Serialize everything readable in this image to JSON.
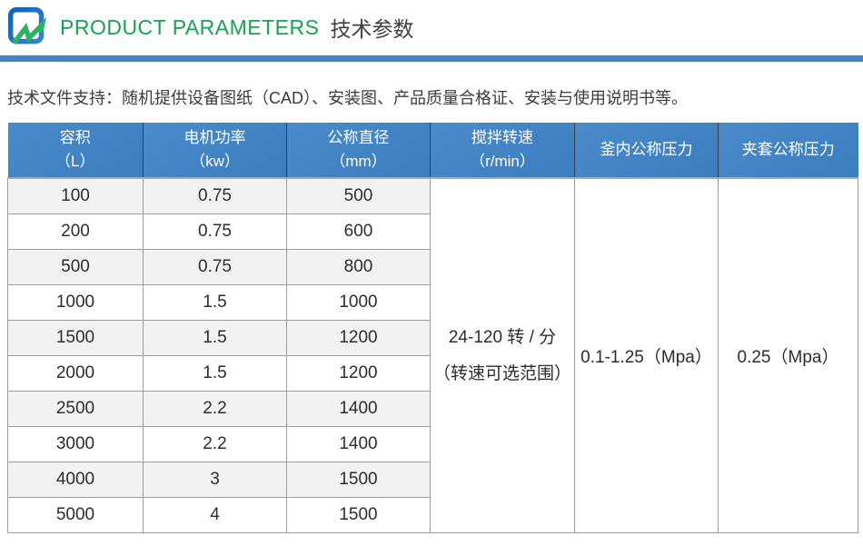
{
  "header": {
    "title_en": "PRODUCT PARAMETERS",
    "title_zh": "技术参数",
    "logo_icon": "blue-square-green-zigzag-logo"
  },
  "intro_text": "技术文件支持：随机提供设备图纸（CAD）、安装图、产品质量合格证、安装与使用说明书等。",
  "table": {
    "columns": [
      {
        "line1": "容积",
        "line2": "（L）"
      },
      {
        "line1": "电机功率",
        "line2": "（kw）"
      },
      {
        "line1": "公称直径",
        "line2": "（mm）"
      },
      {
        "line1": "搅拌转速",
        "line2": "（r/min）"
      },
      {
        "line1": "釜内公称压力",
        "line2": ""
      },
      {
        "line1": "夹套公称压力",
        "line2": ""
      }
    ],
    "rows": [
      {
        "volume": "100",
        "power": "0.75",
        "diameter": "500"
      },
      {
        "volume": "200",
        "power": "0.75",
        "diameter": "600"
      },
      {
        "volume": "500",
        "power": "0.75",
        "diameter": "800"
      },
      {
        "volume": "1000",
        "power": "1.5",
        "diameter": "1000"
      },
      {
        "volume": "1500",
        "power": "1.5",
        "diameter": "1200"
      },
      {
        "volume": "2000",
        "power": "1.5",
        "diameter": "1200"
      },
      {
        "volume": "2500",
        "power": "2.2",
        "diameter": "1400"
      },
      {
        "volume": "3000",
        "power": "2.2",
        "diameter": "1400"
      },
      {
        "volume": "4000",
        "power": "3",
        "diameter": "1500"
      },
      {
        "volume": "5000",
        "power": "4",
        "diameter": "1500"
      }
    ],
    "merged": {
      "speed_line1": "24-120 转 / 分",
      "speed_line2": "（转速可选范围）",
      "inner_pressure": "0.1-1.25（Mpa）",
      "jacket_pressure": "0.25（Mpa）"
    }
  },
  "colors": {
    "accent_blue": "#4183c4",
    "title_green": "#17a253",
    "stripe_gray": "#f2f2f2",
    "border_gray": "#9c9c9c",
    "logo_blue": "#1567b3",
    "logo_green": "#2eb162"
  }
}
